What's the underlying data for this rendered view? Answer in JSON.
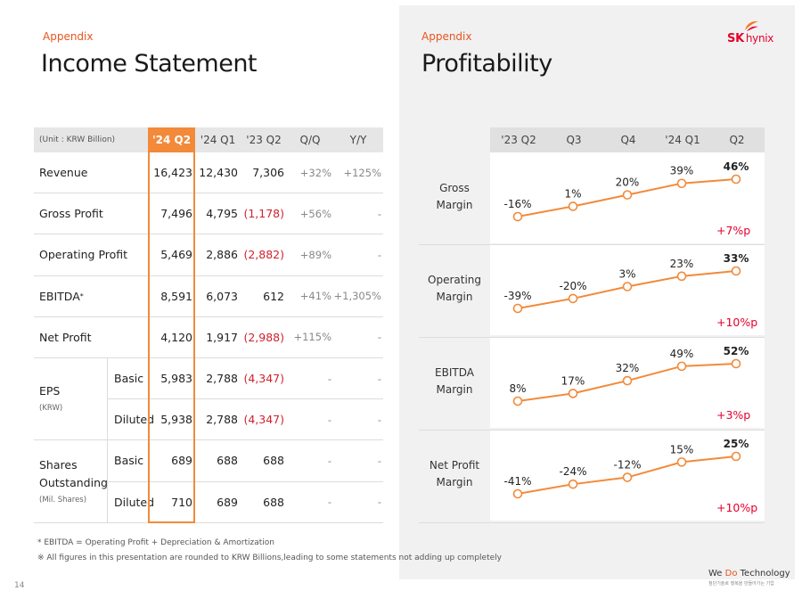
{
  "left": {
    "section": "Appendix",
    "title": "Income Statement",
    "unit": "(Unit : KRW Billion)",
    "columns": [
      "'24 Q2",
      "'24 Q1",
      "'23 Q2",
      "Q/Q",
      "Y/Y"
    ],
    "rows": [
      {
        "label": "Revenue",
        "values": [
          "16,423",
          "12,430",
          "7,306"
        ],
        "qq": "+32%",
        "yy": "+125%"
      },
      {
        "label": "Gross Profit",
        "values": [
          "7,496",
          "4,795",
          "(1,178)"
        ],
        "qq": "+56%",
        "yy": "-"
      },
      {
        "label": "Operating Profit",
        "values": [
          "5,469",
          "2,886",
          "(2,882)"
        ],
        "qq": "+89%",
        "yy": "-"
      },
      {
        "label": "EBITDA",
        "label_sup": "*",
        "values": [
          "8,591",
          "6,073",
          "612"
        ],
        "qq": "+41%",
        "yy": "+1,305%"
      },
      {
        "label": "Net Profit",
        "values": [
          "4,120",
          "1,917",
          "(2,988)"
        ],
        "qq": "+115%",
        "yy": "-"
      }
    ],
    "eps": {
      "label": "EPS",
      "unit": "(KRW)",
      "rows": [
        {
          "sub": "Basic",
          "values": [
            "5,983",
            "2,788",
            "(4,347)"
          ],
          "qq": "-",
          "yy": "-"
        },
        {
          "sub": "Diluted",
          "values": [
            "5,938",
            "2,788",
            "(4,347)"
          ],
          "qq": "-",
          "yy": "-"
        }
      ]
    },
    "shares": {
      "label1": "Shares",
      "label2": "Outstanding",
      "unit": "(Mil. Shares)",
      "rows": [
        {
          "sub": "Basic",
          "values": [
            "689",
            "688",
            "688"
          ],
          "qq": "-",
          "yy": "-"
        },
        {
          "sub": "Diluted",
          "values": [
            "710",
            "689",
            "688"
          ],
          "qq": "-",
          "yy": "-"
        }
      ]
    },
    "footnote1": "* EBITDA = Operating Profit + Depreciation & Amortization",
    "footnote2": "※ All figures in this presentation are rounded to KRW Billions,leading to some statements not adding up completely",
    "page_number": "14"
  },
  "right": {
    "section": "Appendix",
    "title": "Profitability",
    "logo_sk": "SK",
    "logo_hynix": "hynix",
    "tagline": "We Do Technology",
    "tagline_accent": "Do",
    "tagline_sub": "첨단기술로 행복을 만들어가는 기업"
  },
  "chart_data": {
    "type": "line",
    "categories": [
      "'23 Q2",
      "Q3",
      "Q4",
      "'24 Q1",
      "Q2"
    ],
    "series": [
      {
        "name": "Gross Margin",
        "label_lines": [
          "Gross",
          "Margin"
        ],
        "values": [
          -16,
          1,
          20,
          39,
          46
        ],
        "labels": [
          "-16%",
          "1%",
          "20%",
          "39%",
          "46%"
        ],
        "delta": "+7%p"
      },
      {
        "name": "Operating Margin",
        "label_lines": [
          "Operating",
          "Margin"
        ],
        "values": [
          -39,
          -20,
          3,
          23,
          33
        ],
        "labels": [
          "-39%",
          "-20%",
          "3%",
          "23%",
          "33%"
        ],
        "delta": "+10%p"
      },
      {
        "name": "EBITDA Margin",
        "label_lines": [
          "EBITDA",
          "Margin"
        ],
        "values": [
          8,
          17,
          32,
          49,
          52
        ],
        "labels": [
          "8%",
          "17%",
          "32%",
          "49%",
          "52%"
        ],
        "delta": "+3%p"
      },
      {
        "name": "Net Profit Margin",
        "label_lines": [
          "Net Profit",
          "Margin"
        ],
        "values": [
          -41,
          -24,
          -12,
          15,
          25
        ],
        "labels": [
          "-41%",
          "-24%",
          "-12%",
          "15%",
          "25%"
        ],
        "delta": "+10%p"
      }
    ],
    "line_color": "#f28a3a",
    "delta_color": "#e4002b"
  },
  "colors": {
    "accent": "#e8541e",
    "highlight": "#f28a3a",
    "negative": "#d0222d"
  }
}
